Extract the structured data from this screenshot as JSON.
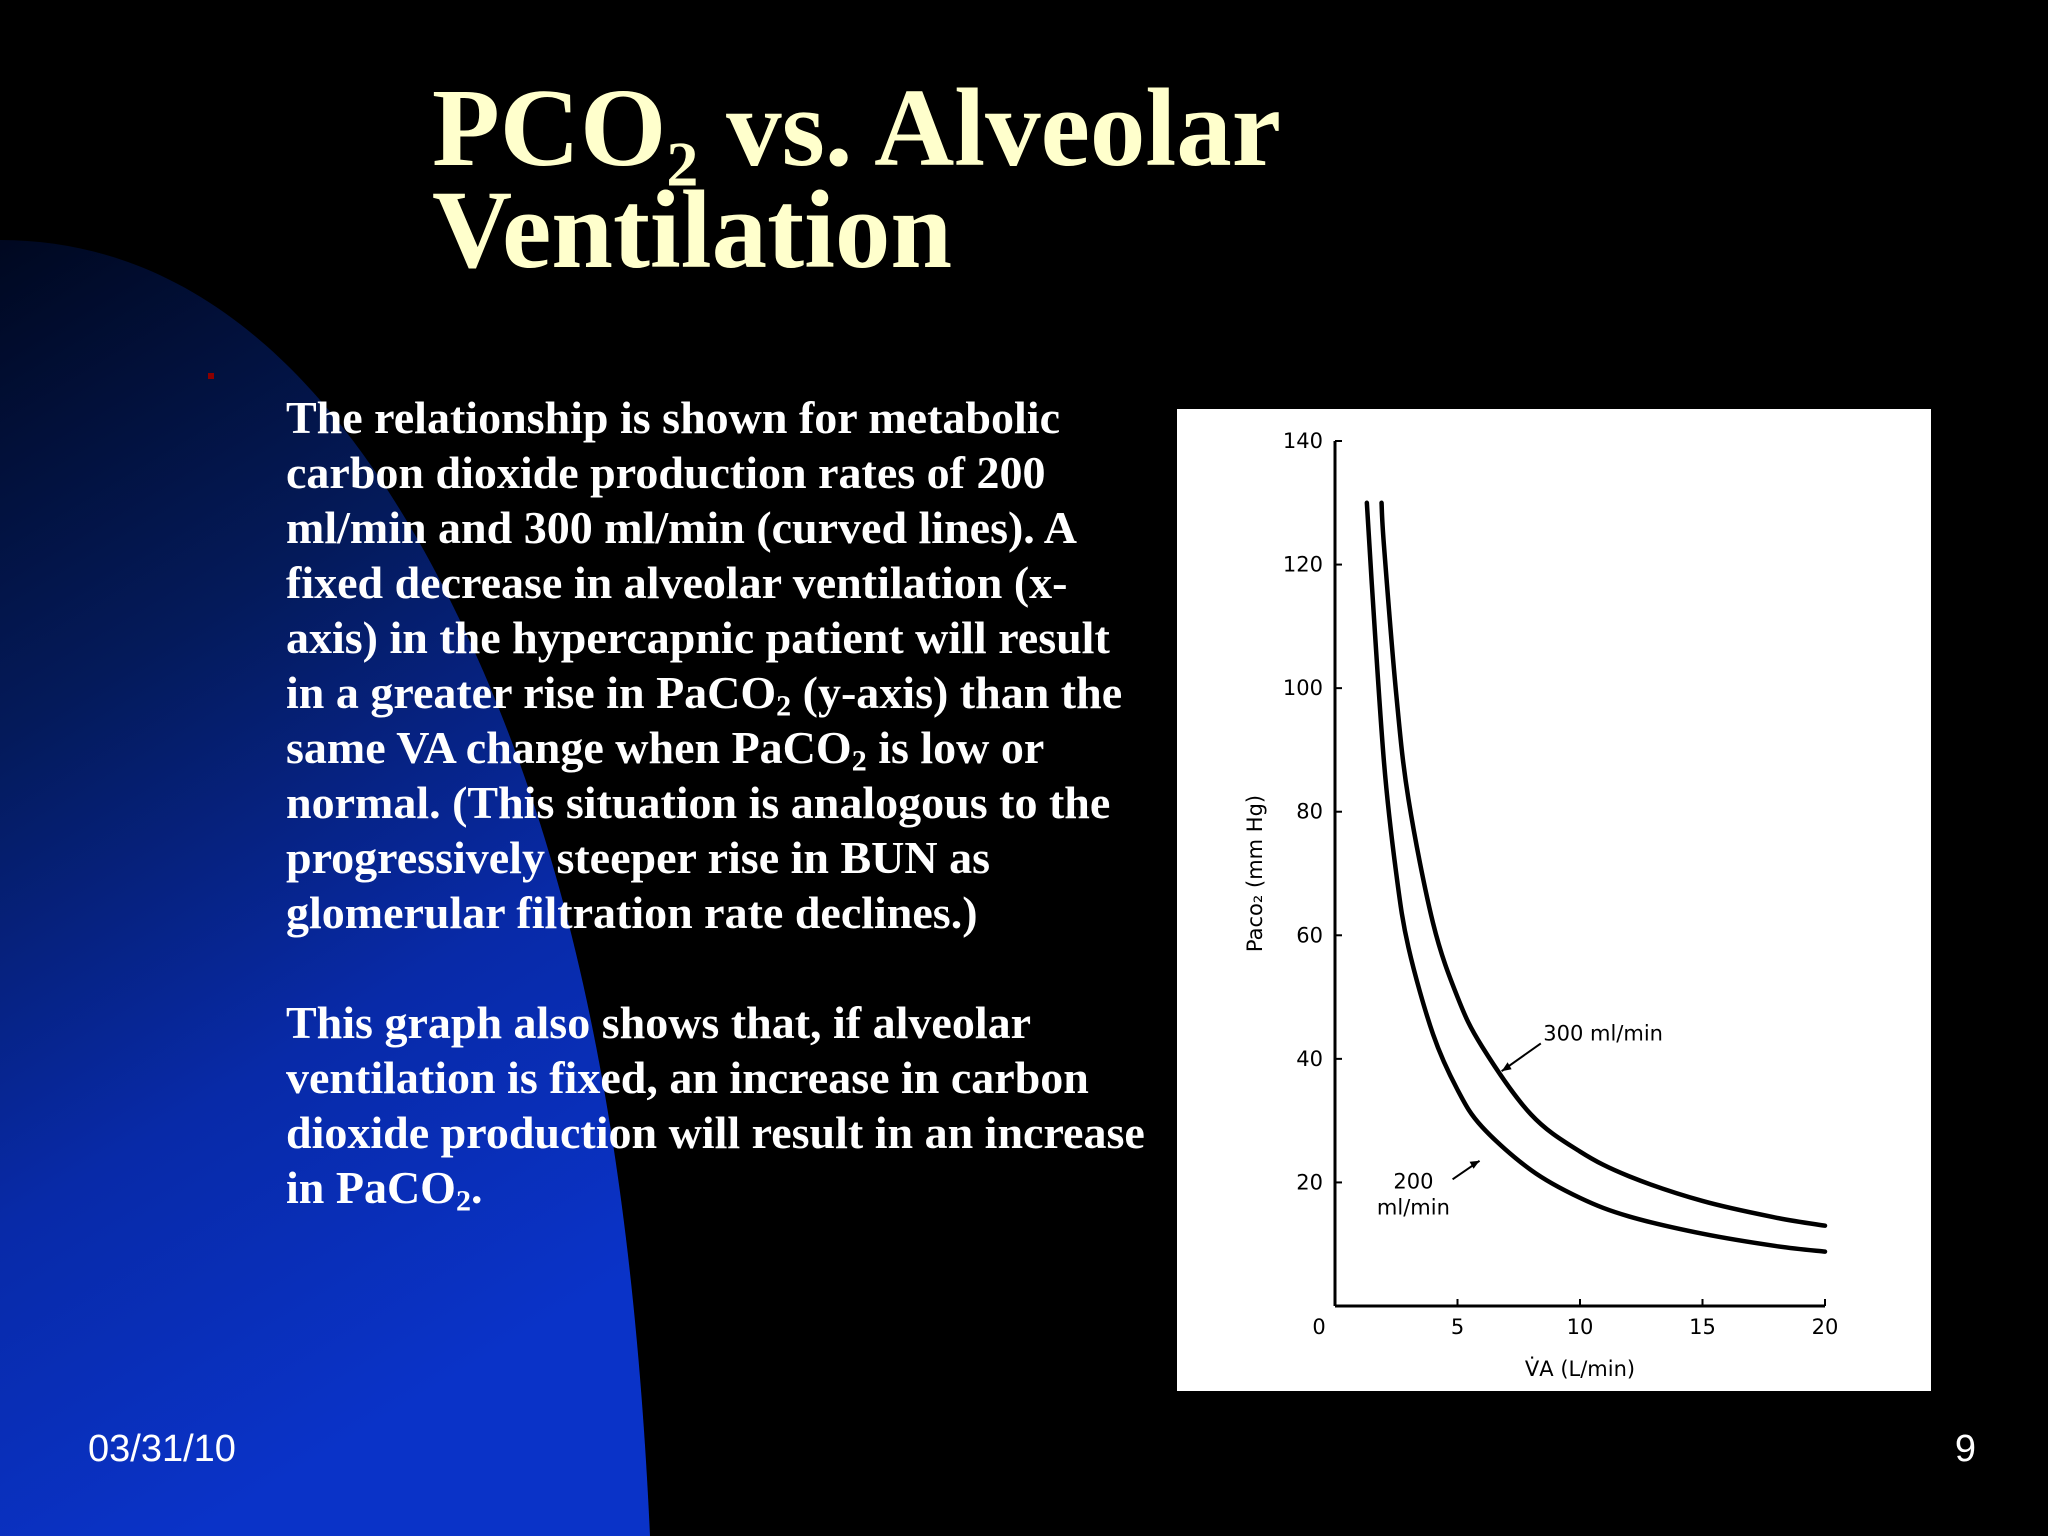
{
  "slide": {
    "title_line1_prefix": "PCO",
    "title_line1_sub": "2",
    "title_line1_suffix": " vs. Alveolar",
    "title_line2": "Ventilation",
    "paragraph1": {
      "part1": "The relationship is shown for metabolic carbon dioxide production rates of 200 ml/min and 300 ml/min (curved lines).  A fixed decrease in alveolar ventilation (x-axis) in the hypercapnic patient will result in a greater rise in PaCO",
      "sub1": "2",
      "part2": " (y-axis) than the same VA change when PaCO",
      "sub2": "2",
      "part3": " is low or normal.  (This situation is analogous to the progressively steeper rise in BUN as glomerular filtration rate declines.)"
    },
    "paragraph2": {
      "part1": "This graph also shows that, if alveolar ventilation is fixed, an increase in carbon dioxide production will result in an increase in PaCO",
      "sub1": "2",
      "part2": "."
    },
    "footer_date": "03/31/10",
    "footer_page": "9",
    "colors": {
      "title": "#FFFFCC",
      "body_text": "#FFFFFF",
      "background": "#000000",
      "accent_blue": "#0A33C8"
    }
  },
  "chart_data": {
    "type": "line",
    "xlabel": "V̇A (L/min)",
    "ylabel": "Paco₂ (mm Hg)",
    "xlim": [
      0,
      20
    ],
    "ylim": [
      0,
      140
    ],
    "x_ticks": [
      "0",
      "5",
      "10",
      "15",
      "20"
    ],
    "y_ticks": [
      "20",
      "40",
      "60",
      "80",
      "100",
      "120",
      "140"
    ],
    "series": [
      {
        "name": "200 ml/min",
        "x": [
          1.3,
          1.5,
          2,
          2.5,
          3,
          4,
          5,
          6,
          8,
          10,
          12,
          15,
          18,
          20
        ],
        "y": [
          130,
          117,
          88,
          70,
          58,
          44,
          35,
          29,
          22,
          17.5,
          14.5,
          11.7,
          9.7,
          8.8
        ]
      },
      {
        "name": "300 ml/min",
        "x": [
          1.9,
          2,
          2.5,
          3,
          4,
          5,
          6,
          8,
          10,
          12,
          15,
          18,
          20
        ],
        "y": [
          130,
          123,
          99,
          82,
          62,
          50,
          42,
          31,
          25,
          21,
          17,
          14.3,
          13
        ]
      }
    ],
    "annotations": [
      "300 ml/min",
      "200",
      "ml/min"
    ],
    "grid": false,
    "legend": "none"
  }
}
